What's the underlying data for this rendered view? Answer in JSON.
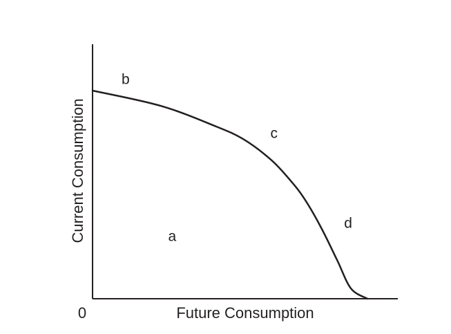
{
  "chart_data": {
    "type": "line",
    "title": "",
    "xlabel": "Future Consumption",
    "ylabel": "Current Consumption",
    "origin_label": "0",
    "xlim": [
      0,
      100
    ],
    "ylim": [
      0,
      100
    ],
    "grid": false,
    "legend": "none",
    "colors": {
      "curve": "#231f20",
      "axes": "#231f20",
      "text": "#231f20"
    },
    "series": [
      {
        "x": [
          0,
          25,
          45,
          55,
          65,
          72,
          77,
          83,
          89,
          94,
          100
        ],
        "y": [
          81,
          75,
          67,
          62,
          54,
          46,
          39,
          28,
          15,
          4,
          0
        ]
      }
    ],
    "annotations": [
      {
        "text": "b",
        "x": 12,
        "y": 85
      },
      {
        "text": "c",
        "x": 66,
        "y": 64
      },
      {
        "text": "d",
        "x": 93,
        "y": 29
      },
      {
        "text": "a",
        "x": 29,
        "y": 24
      }
    ]
  }
}
